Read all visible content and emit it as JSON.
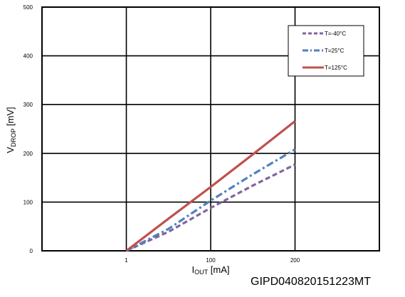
{
  "chart_data": {
    "type": "line",
    "x_scale": "categorical",
    "x_ticks": [
      "1",
      "100",
      "200"
    ],
    "y_ticks": [
      "0",
      "100",
      "200",
      "300",
      "400",
      "500"
    ],
    "ylim": [
      0,
      500
    ],
    "grid": true,
    "legend_position": "top-right",
    "xlabel": {
      "main": "I",
      "sub": "OUT",
      "unit": " [mA]"
    },
    "ylabel": {
      "main": "V",
      "sub": "DROP",
      "unit": " [mV]"
    },
    "series": [
      {
        "name": "T=-40°C",
        "color": "#8064a2",
        "dash": "dash",
        "points": [
          [
            0.0,
            0
          ],
          [
            0.5,
            39
          ],
          [
            1.0,
            88
          ],
          [
            1.5,
            134
          ],
          [
            2.0,
            177
          ]
        ]
      },
      {
        "name": "T=25°C",
        "color": "#4f81bd",
        "dash": "dashdot",
        "points": [
          [
            0.0,
            0
          ],
          [
            0.5,
            45
          ],
          [
            1.0,
            103
          ],
          [
            1.5,
            157
          ],
          [
            2.0,
            208
          ]
        ]
      },
      {
        "name": "T=125°C",
        "color": "#c0504d",
        "dash": "solid",
        "points": [
          [
            0.0,
            0
          ],
          [
            0.5,
            66
          ],
          [
            1.0,
            131
          ],
          [
            1.5,
            198
          ],
          [
            2.0,
            266
          ]
        ]
      }
    ],
    "x_range": [
      -1.0,
      3.0
    ]
  },
  "figure_id": "GIPD040820151223MT"
}
